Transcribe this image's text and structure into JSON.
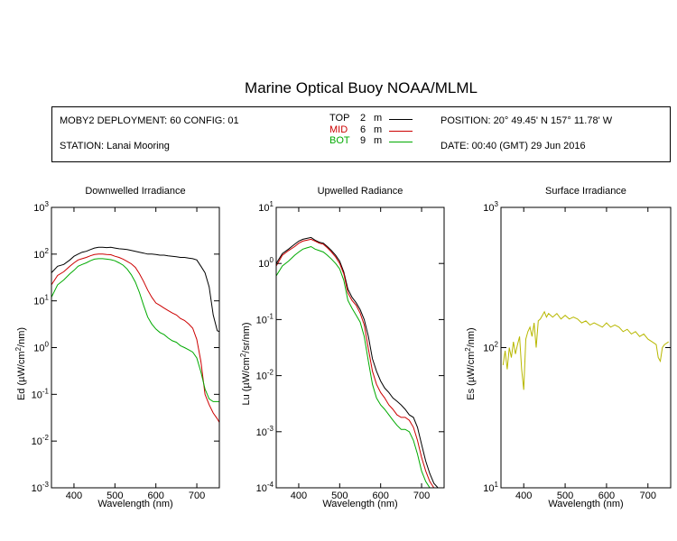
{
  "header": {
    "title": "Marine Optical Buoy NOAA/MLML",
    "deployment": "MOBY2 DEPLOYMENT: 60 CONFIG: 01",
    "station": "STATION: Lanai Mooring",
    "position": "POSITION: 20° 49.45' N   157° 11.78' W",
    "date": "DATE: 00:40 (GMT) 29 Jun 2016",
    "legend": [
      {
        "label": "TOP",
        "depth": "2",
        "unit": "m",
        "color": "#000000"
      },
      {
        "label": "MID",
        "depth": "6",
        "unit": "m",
        "color": "#cc0000"
      },
      {
        "label": "BOT",
        "depth": "9",
        "unit": "m",
        "color": "#00aa00"
      }
    ]
  },
  "chart_data": [
    {
      "type": "line",
      "title": "Downwelled Irradiance",
      "xlabel": "Wavelength (nm)",
      "ylabel": "Ed  (µW/cm²/nm)",
      "ylabel_parts": [
        "Ed  (µW/cm",
        "2",
        "/nm)"
      ],
      "xlim": [
        345,
        755
      ],
      "ylim": [
        0.001,
        1000
      ],
      "yscale": "log",
      "xticks": [
        400,
        500,
        600,
        700
      ],
      "yticks": [
        {
          "base": "10",
          "exp": "-3"
        },
        {
          "base": "10",
          "exp": "-2"
        },
        {
          "base": "10",
          "exp": "-1"
        },
        {
          "base": "10",
          "exp": "0"
        },
        {
          "base": "10",
          "exp": "1"
        },
        {
          "base": "10",
          "exp": "2"
        },
        {
          "base": "10",
          "exp": "3"
        }
      ],
      "x": [
        345,
        360,
        375,
        390,
        400,
        410,
        420,
        430,
        440,
        450,
        460,
        470,
        480,
        490,
        500,
        510,
        520,
        530,
        540,
        550,
        560,
        570,
        580,
        590,
        600,
        610,
        620,
        630,
        640,
        650,
        660,
        670,
        680,
        690,
        700,
        710,
        720,
        730,
        740,
        750,
        755
      ],
      "series": [
        {
          "name": "TOP",
          "color": "#000000",
          "values": [
            40,
            55,
            60,
            75,
            90,
            100,
            110,
            115,
            125,
            135,
            140,
            140,
            138,
            140,
            135,
            130,
            128,
            125,
            120,
            115,
            110,
            105,
            100,
            100,
            98,
            95,
            95,
            92,
            90,
            88,
            85,
            85,
            82,
            80,
            75,
            55,
            40,
            20,
            5,
            2.3,
            2.2
          ]
        },
        {
          "name": "MID",
          "color": "#cc0000",
          "values": [
            22,
            35,
            42,
            55,
            65,
            75,
            80,
            85,
            92,
            98,
            100,
            100,
            98,
            97,
            90,
            85,
            78,
            70,
            62,
            52,
            38,
            26,
            17,
            12,
            9,
            8,
            7,
            6.2,
            5.5,
            5,
            4.2,
            3.8,
            3.2,
            2.6,
            1.5,
            0.5,
            0.1,
            0.06,
            0.04,
            0.03,
            0.025
          ]
        },
        {
          "name": "BOT",
          "color": "#00aa00",
          "values": [
            12,
            22,
            28,
            38,
            45,
            55,
            60,
            65,
            72,
            78,
            80,
            80,
            78,
            76,
            72,
            65,
            58,
            48,
            36,
            25,
            15,
            8,
            4.5,
            3.2,
            2.5,
            2.1,
            1.9,
            1.6,
            1.4,
            1.3,
            1.1,
            1.0,
            0.9,
            0.8,
            0.6,
            0.3,
            0.13,
            0.08,
            0.07,
            0.07,
            0.07
          ]
        }
      ]
    },
    {
      "type": "line",
      "title": "Upwelled Radiance",
      "xlabel": "Wavelength (nm)",
      "ylabel": "Lu  (µW/cm²/sr/nm)",
      "ylabel_parts": [
        "Lu  (µW/cm",
        "2",
        "/sr/nm)"
      ],
      "xlim": [
        345,
        755
      ],
      "ylim": [
        0.0001,
        10
      ],
      "yscale": "log",
      "xticks": [
        400,
        500,
        600,
        700
      ],
      "yticks": [
        {
          "base": "10",
          "exp": "-4"
        },
        {
          "base": "10",
          "exp": "-3"
        },
        {
          "base": "10",
          "exp": "-2"
        },
        {
          "base": "10",
          "exp": "-1"
        },
        {
          "base": "10",
          "exp": "0"
        },
        {
          "base": "10",
          "exp": "1"
        }
      ],
      "x": [
        345,
        360,
        375,
        390,
        400,
        410,
        420,
        430,
        440,
        450,
        460,
        470,
        480,
        490,
        500,
        510,
        520,
        530,
        540,
        550,
        560,
        570,
        580,
        590,
        600,
        610,
        620,
        630,
        640,
        650,
        660,
        670,
        680,
        690,
        700,
        710,
        720,
        730,
        740,
        750
      ],
      "series": [
        {
          "name": "TOP",
          "color": "#000000",
          "values": [
            1.0,
            1.5,
            1.8,
            2.2,
            2.5,
            2.7,
            2.8,
            2.9,
            2.6,
            2.4,
            2.3,
            2.0,
            1.7,
            1.4,
            1.1,
            0.7,
            0.35,
            0.25,
            0.2,
            0.15,
            0.1,
            0.05,
            0.02,
            0.012,
            0.008,
            0.006,
            0.005,
            0.004,
            0.0035,
            0.003,
            0.0025,
            0.002,
            0.0018,
            0.0012,
            0.0006,
            0.0003,
            0.00018,
            0.00012,
            0.0001,
            0.0001
          ]
        },
        {
          "name": "MID",
          "color": "#cc0000",
          "values": [
            0.9,
            1.4,
            1.7,
            2.0,
            2.3,
            2.5,
            2.6,
            2.7,
            2.5,
            2.3,
            2.2,
            1.9,
            1.6,
            1.3,
            1.0,
            0.65,
            0.3,
            0.22,
            0.18,
            0.13,
            0.08,
            0.03,
            0.012,
            0.007,
            0.005,
            0.004,
            0.003,
            0.0025,
            0.002,
            0.0018,
            0.0018,
            0.0016,
            0.0012,
            0.0007,
            0.00035,
            0.0002,
            0.00013,
            0.0001,
            0.0001,
            0.0001
          ]
        },
        {
          "name": "BOT",
          "color": "#00aa00",
          "values": [
            0.6,
            0.9,
            1.1,
            1.4,
            1.6,
            1.8,
            1.9,
            2.0,
            1.8,
            1.7,
            1.6,
            1.4,
            1.2,
            1.0,
            0.8,
            0.5,
            0.22,
            0.16,
            0.12,
            0.09,
            0.05,
            0.018,
            0.007,
            0.004,
            0.003,
            0.0025,
            0.002,
            0.0016,
            0.0013,
            0.0011,
            0.0011,
            0.001,
            0.0007,
            0.0004,
            0.0002,
            0.00013,
            0.0001,
            0.0001,
            0.0001,
            0.0001
          ]
        }
      ]
    },
    {
      "type": "line",
      "title": "Surface Irradiance",
      "xlabel": "Wavelength (nm)",
      "ylabel": "Es  (µW/cm²/nm)",
      "ylabel_parts": [
        "Es  (µW/cm",
        "2",
        "/nm)"
      ],
      "xlim": [
        345,
        755
      ],
      "ylim": [
        10,
        1000
      ],
      "yscale": "log",
      "xticks": [
        400,
        500,
        600,
        700
      ],
      "yticks": [
        {
          "base": "10",
          "exp": "1"
        },
        {
          "base": "10",
          "exp": "2"
        },
        {
          "base": "10",
          "exp": "3"
        }
      ],
      "x": [
        350,
        355,
        360,
        365,
        370,
        375,
        380,
        385,
        390,
        395,
        400,
        405,
        410,
        415,
        420,
        425,
        430,
        435,
        440,
        445,
        450,
        455,
        460,
        470,
        480,
        490,
        500,
        510,
        520,
        530,
        540,
        550,
        560,
        570,
        580,
        590,
        600,
        610,
        620,
        630,
        640,
        650,
        660,
        670,
        680,
        690,
        700,
        710,
        720,
        725,
        730,
        735,
        740,
        750
      ],
      "series": [
        {
          "name": "surface",
          "color": "#b8b800",
          "values": [
            75,
            95,
            70,
            100,
            85,
            110,
            90,
            105,
            120,
            70,
            50,
            115,
            130,
            140,
            120,
            150,
            100,
            155,
            160,
            170,
            180,
            165,
            175,
            165,
            175,
            160,
            170,
            160,
            165,
            160,
            150,
            155,
            145,
            150,
            145,
            140,
            150,
            140,
            145,
            140,
            130,
            135,
            125,
            130,
            120,
            125,
            115,
            110,
            105,
            85,
            80,
            100,
            105,
            110
          ]
        }
      ]
    }
  ]
}
